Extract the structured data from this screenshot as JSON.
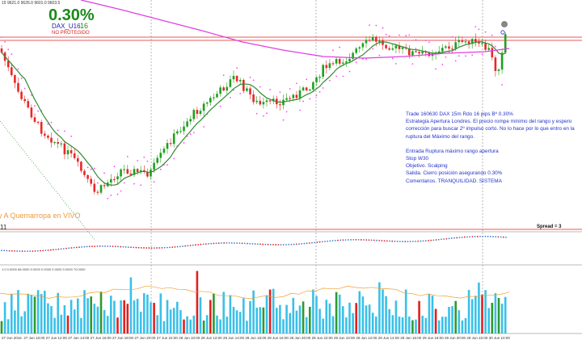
{
  "header": {
    "ohlc_readout": "15  9621.0 9626.0 9601.0 9603.5",
    "profit_percent": "0.30%",
    "symbol": "DAX_U16",
    "pips": "16",
    "protection_status": "NO PROTEGIDO"
  },
  "watermark": "y A Quemarropa en VIVO",
  "oscillator_label": "11",
  "spread_label": "Spread = 3",
  "subwindow_info": "1.0 0.0000 68.0000 0.0000 0.0000 0.0000 0.0000 70.0000",
  "trade_note": {
    "lines": [
      "Trade 160630 DAX 15m Rdo 16 pips Bº 0.30%",
      "Estrategia Apertura Londres. El precio rompe mínimo del rango y espero corrección para buscar 2º impulso corto.  No lo hace por lo que entro en la ruptura del Máximo del rango."
    ],
    "details": [
      "Entrada Ruptura máximo rango apertura",
      "Stop W30",
      "Objetivo. Scalping",
      "Salida. Cierro posición asegurando 0.30%",
      "Comentarios. TRANQUILIDAD. SISTEMA"
    ]
  },
  "colors": {
    "bull_candle": "#1ea01e",
    "bear_candle": "#e82828",
    "ma_fast": "#2e8b2e",
    "ma_slow": "#e040e0",
    "psar": "#ff44ff",
    "level_line": "#e02020",
    "text_note": "#2233cc"
  },
  "time_axis": [
    "27 Jun 2016",
    "27 Jun 10:00",
    "27 Jun 12:00",
    "27 Jun 14:00",
    "27 Jun 16:00",
    "27 Jun 18:00",
    "27 Jun 20:00",
    "27 Jun 22:00",
    "28 Jun 10:00",
    "28 Jun 12:00",
    "28 Jun 14:00",
    "28 Jun 16:00",
    "28 Jun 18:00",
    "28 Jun 20:00",
    "28 Jun 22:00",
    "29 Jun 10:00",
    "29 Jun 12:00",
    "29 Jun 14:00",
    "29 Jun 16:00",
    "29 Jun 18:00",
    "29 Jun 20:00",
    "29 Jun 22:00",
    "30 Jun 10:00"
  ]
}
